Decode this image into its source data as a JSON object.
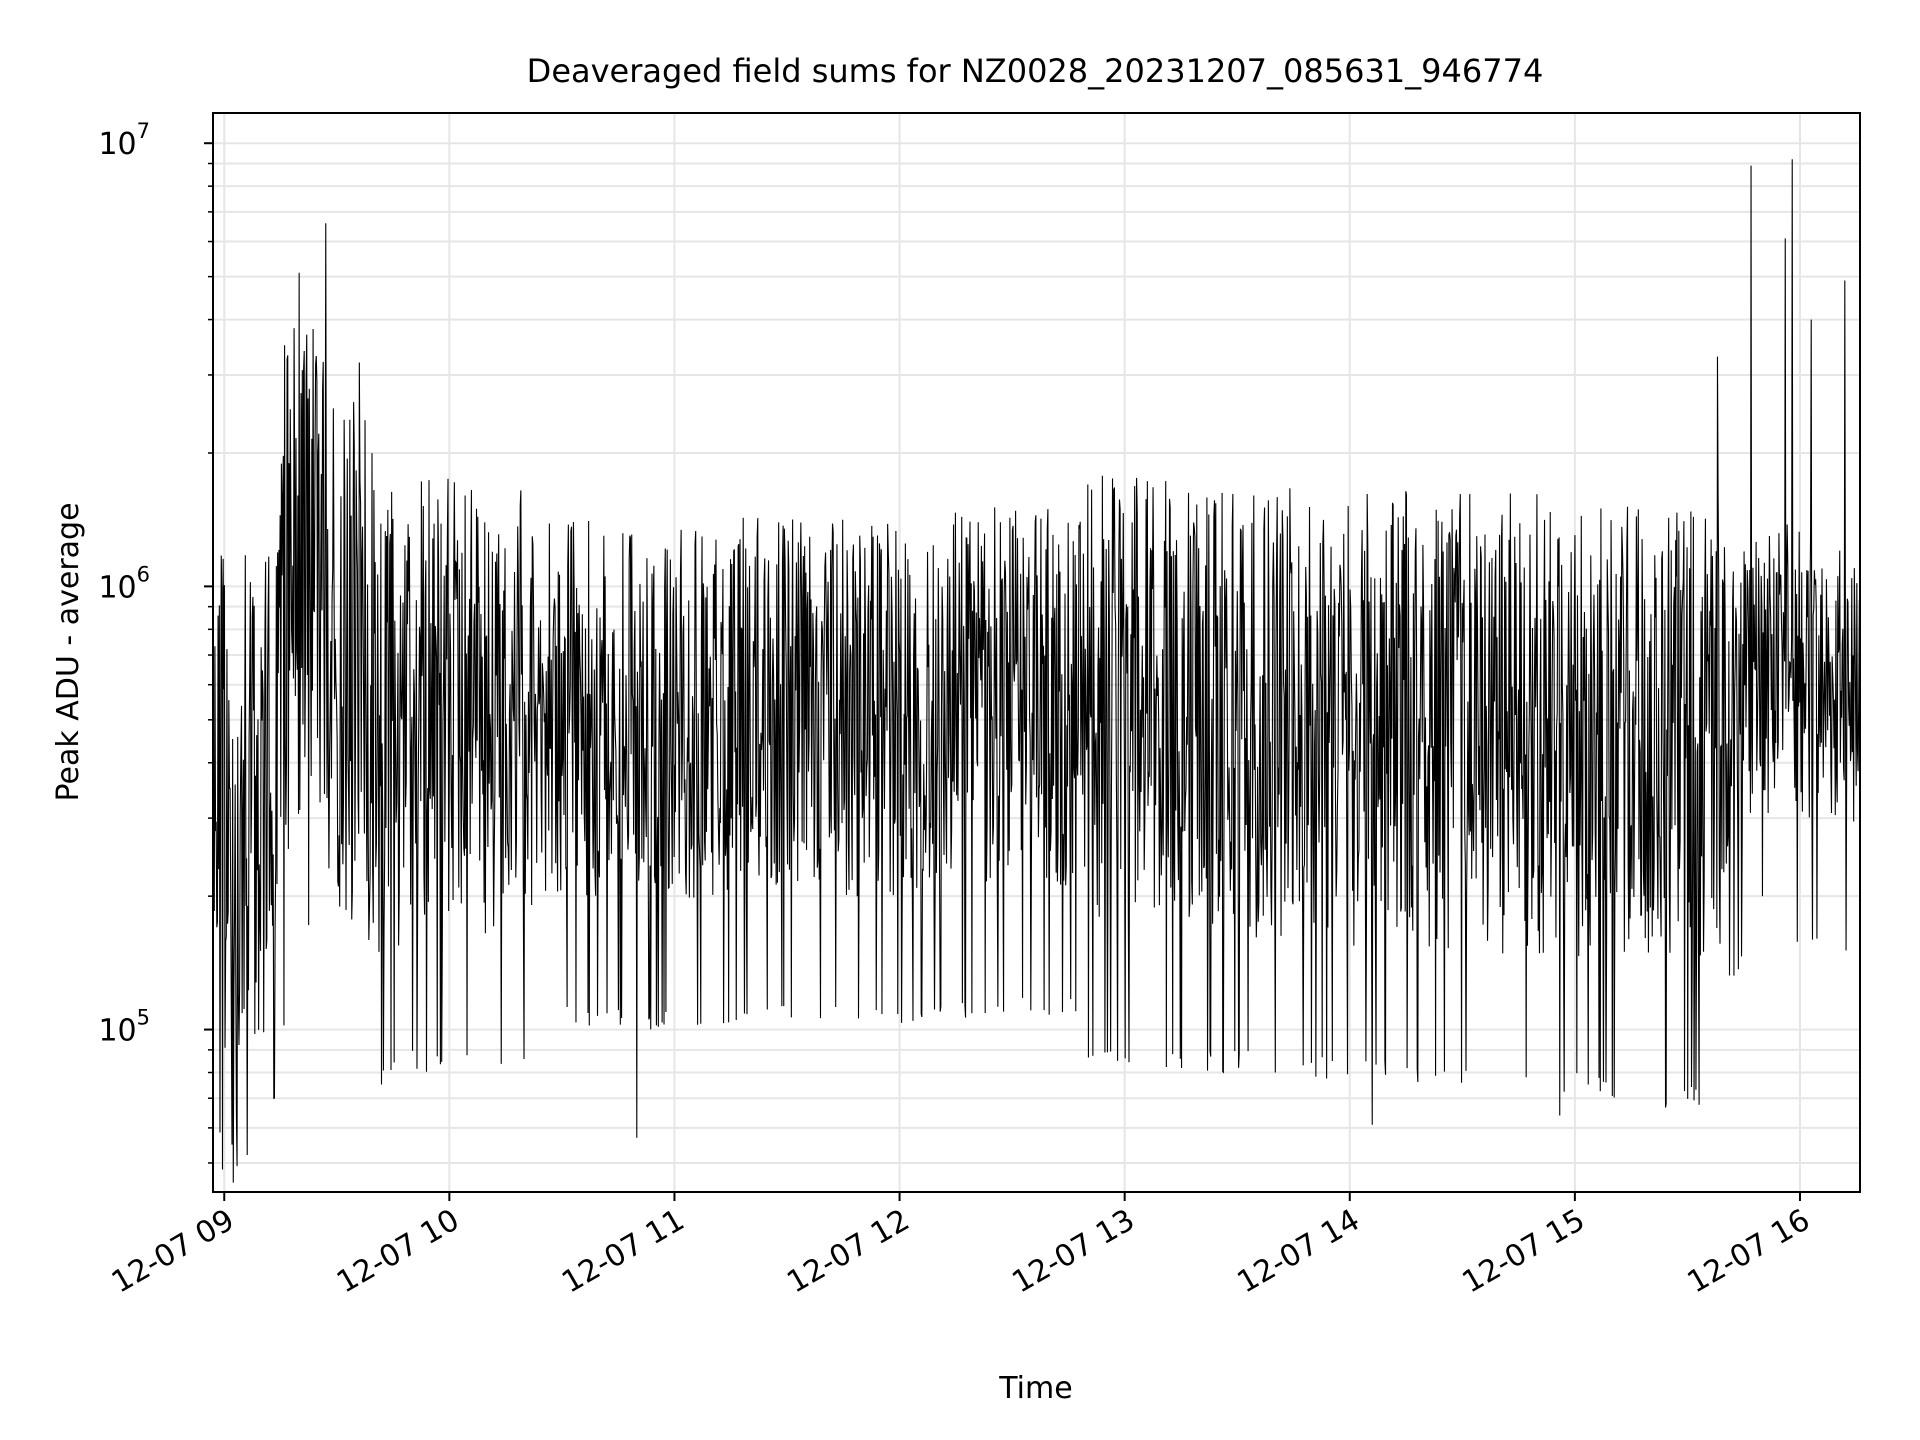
{
  "chart_data": {
    "type": "line",
    "title": "Deaveraged field sums for NZ0028_20231207_085631_946774",
    "xlabel": "Time",
    "ylabel": "Peak ADU - average",
    "y_scale": "log",
    "grid": true,
    "legend": "none",
    "line_color": "#000000",
    "xlim": [
      "2023-12-07 08:57",
      "2023-12-07 16:16"
    ],
    "ylim": [
      43000,
      11700000
    ],
    "x_ticks": [
      {
        "value": "2023-12-07 09:00",
        "label": "12-07 09"
      },
      {
        "value": "2023-12-07 10:00",
        "label": "12-07 10"
      },
      {
        "value": "2023-12-07 11:00",
        "label": "12-07 11"
      },
      {
        "value": "2023-12-07 12:00",
        "label": "12-07 12"
      },
      {
        "value": "2023-12-07 13:00",
        "label": "12-07 13"
      },
      {
        "value": "2023-12-07 14:00",
        "label": "12-07 14"
      },
      {
        "value": "2023-12-07 15:00",
        "label": "12-07 15"
      },
      {
        "value": "2023-12-07 16:00",
        "label": "12-07 16"
      }
    ],
    "y_ticks": [
      {
        "value": 100000,
        "base": "10",
        "exp": "5"
      },
      {
        "value": 1000000,
        "base": "10",
        "exp": "6"
      },
      {
        "value": 10000000,
        "base": "10",
        "exp": "7"
      }
    ],
    "series": [
      {
        "values": [
          {
            "x": "2023-12-07 08:57",
            "y": 600000
          },
          {
            "x": "2023-12-07 09:00",
            "y": 300000
          },
          {
            "x": "2023-12-07 09:03",
            "y": 90000
          },
          {
            "x": "2023-12-07 09:06",
            "y": 350000
          },
          {
            "x": "2023-12-07 09:09",
            "y": 300000
          },
          {
            "x": "2023-12-07 09:12",
            "y": 400000
          },
          {
            "x": "2023-12-07 09:15",
            "y": 700000
          },
          {
            "x": "2023-12-07 09:18",
            "y": 900000
          },
          {
            "x": "2023-12-07 09:21",
            "y": 1200000
          },
          {
            "x": "2023-12-07 09:24",
            "y": 1300000
          },
          {
            "x": "2023-12-07 09:27",
            "y": 900000
          },
          {
            "x": "2023-12-07 09:30",
            "y": 700000
          },
          {
            "x": "2023-12-07 09:33",
            "y": 600000
          },
          {
            "x": "2023-12-07 09:36",
            "y": 700000
          },
          {
            "x": "2023-12-07 09:39",
            "y": 500000
          },
          {
            "x": "2023-12-07 09:42",
            "y": 450000
          },
          {
            "x": "2023-12-07 09:50",
            "y": 500000
          },
          {
            "x": "2023-12-07 10:00",
            "y": 500000
          },
          {
            "x": "2023-12-07 10:20",
            "y": 520000
          },
          {
            "x": "2023-12-07 10:40",
            "y": 500000
          },
          {
            "x": "2023-12-07 11:00",
            "y": 500000
          },
          {
            "x": "2023-12-07 11:30",
            "y": 520000
          },
          {
            "x": "2023-12-07 12:00",
            "y": 500000
          },
          {
            "x": "2023-12-07 12:30",
            "y": 550000
          },
          {
            "x": "2023-12-07 13:00",
            "y": 520000
          },
          {
            "x": "2023-12-07 13:30",
            "y": 500000
          },
          {
            "x": "2023-12-07 14:00",
            "y": 480000
          },
          {
            "x": "2023-12-07 14:30",
            "y": 470000
          },
          {
            "x": "2023-12-07 15:00",
            "y": 450000
          },
          {
            "x": "2023-12-07 15:20",
            "y": 420000
          },
          {
            "x": "2023-12-07 15:35",
            "y": 420000
          },
          {
            "x": "2023-12-07 15:45",
            "y": 550000
          },
          {
            "x": "2023-12-07 15:55",
            "y": 650000
          },
          {
            "x": "2023-12-07 16:05",
            "y": 600000
          },
          {
            "x": "2023-12-07 16:16",
            "y": 600000
          }
        ],
        "peaks": [
          {
            "x": "2023-12-07 09:16",
            "y": 3500000
          },
          {
            "x": "2023-12-07 09:20",
            "y": 5100000
          },
          {
            "x": "2023-12-07 09:22",
            "y": 3700000
          },
          {
            "x": "2023-12-07 09:27",
            "y": 6600000
          },
          {
            "x": "2023-12-07 09:36",
            "y": 3200000
          },
          {
            "x": "2023-12-07 12:48",
            "y": 1350000
          },
          {
            "x": "2023-12-07 15:38",
            "y": 3300000
          },
          {
            "x": "2023-12-07 15:47",
            "y": 8900000
          },
          {
            "x": "2023-12-07 15:56",
            "y": 6100000
          },
          {
            "x": "2023-12-07 15:58",
            "y": 9200000
          },
          {
            "x": "2023-12-07 16:03",
            "y": 4000000
          },
          {
            "x": "2023-12-07 16:12",
            "y": 4900000
          }
        ],
        "troughs": [
          {
            "x": "2023-12-07 09:02",
            "y": 55000
          },
          {
            "x": "2023-12-07 10:50",
            "y": 57000
          },
          {
            "x": "2023-12-07 14:06",
            "y": 61000
          },
          {
            "x": "2023-12-07 14:56",
            "y": 64000
          },
          {
            "x": "2023-12-07 15:50",
            "y": 200000
          }
        ]
      }
    ]
  }
}
